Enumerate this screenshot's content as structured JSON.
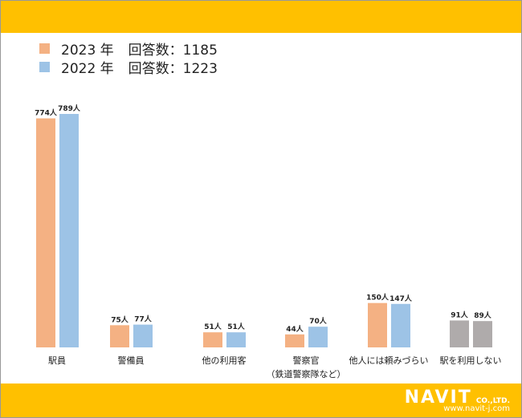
{
  "legend": [
    {
      "year": "2023 年",
      "label": "回答数：1185",
      "color": "#F4B183"
    },
    {
      "year": "2022 年",
      "label": "回答数：1223",
      "color": "#9DC3E6"
    }
  ],
  "logo": {
    "name": "NAVIT",
    "suffix": "CO.,LTD.",
    "url": "www.navit-j.com"
  },
  "chart_data": {
    "type": "bar",
    "categories": [
      "駅員",
      "警備員",
      "他の利用客",
      "警察官\n（鉄道警察隊など）",
      "他人には頼みづらい",
      "駅を利用しない"
    ],
    "series": [
      {
        "name": "2023 年",
        "values": [
          774,
          75,
          51,
          44,
          150,
          91
        ],
        "color": "#F4B183"
      },
      {
        "name": "2022 年",
        "values": [
          789,
          77,
          51,
          70,
          147,
          89
        ],
        "color": "#9DC3E6"
      }
    ],
    "highlight_color": "#AFABAB",
    "unit": "人",
    "grid": false
  }
}
